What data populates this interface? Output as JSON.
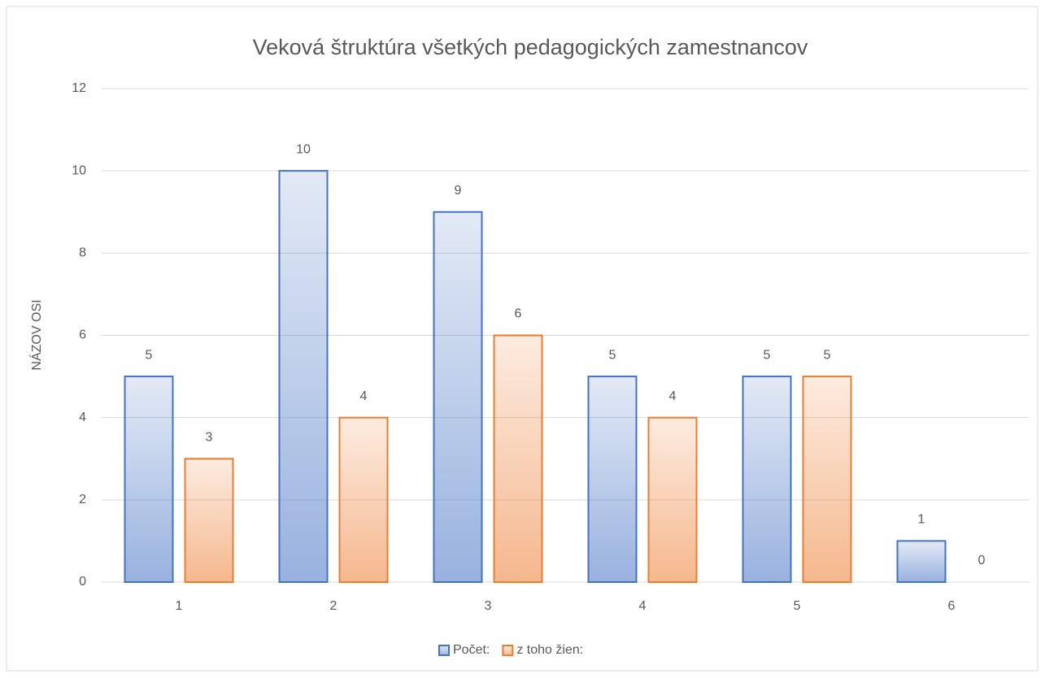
{
  "chart_data": {
    "type": "bar",
    "title": "Veková štruktúra všetkých pedagogických zamestnancov",
    "y_label": "NÁZOV OSI",
    "categories": [
      "1",
      "2",
      "3",
      "4",
      "5",
      "6"
    ],
    "series": [
      {
        "name": "Počet:",
        "color": "#4472c4",
        "values": [
          5,
          10,
          9,
          5,
          5,
          1
        ]
      },
      {
        "name": "z toho žien:",
        "color": "#ed7d31",
        "values": [
          3,
          4,
          6,
          4,
          5,
          0
        ]
      }
    ],
    "ylim": [
      0,
      12
    ],
    "yticks": [
      0,
      2,
      4,
      6,
      8,
      10,
      12
    ],
    "grid": true,
    "legend": "bottom"
  }
}
